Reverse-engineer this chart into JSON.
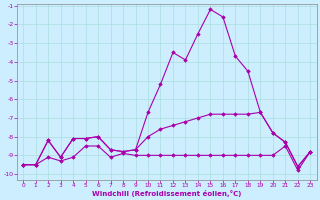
{
  "xlabel": "Windchill (Refroidissement éolien,°C)",
  "background_color": "#cceeff",
  "grid_color": "#aadddd",
  "line_color": "#aa00aa",
  "xlim": [
    -0.5,
    23.5
  ],
  "ylim": [
    -10,
    -1
  ],
  "yticks": [
    -10,
    -9,
    -8,
    -7,
    -6,
    -5,
    -4,
    -3,
    -2,
    -1
  ],
  "xticks": [
    0,
    1,
    2,
    3,
    4,
    5,
    6,
    7,
    8,
    9,
    10,
    11,
    12,
    13,
    14,
    15,
    16,
    17,
    18,
    19,
    20,
    21,
    22,
    23
  ],
  "line1_y": [
    -9.5,
    -9.5,
    -8.2,
    -9.1,
    -8.1,
    -8.1,
    -8.0,
    -8.7,
    -8.8,
    -8.7,
    -6.7,
    -5.2,
    -3.5,
    -3.9,
    -2.5,
    -1.2,
    -1.6,
    -3.7,
    -4.5,
    -6.7,
    -7.8,
    -8.3,
    -9.6,
    -8.8
  ],
  "line2_y": [
    -9.5,
    -9.5,
    -8.2,
    -9.1,
    -8.1,
    -8.1,
    -8.0,
    -8.7,
    -8.8,
    -8.7,
    -8.0,
    -7.6,
    -7.4,
    -7.2,
    -7.0,
    -6.8,
    -6.8,
    -6.8,
    -6.8,
    -6.7,
    -7.8,
    -8.3,
    -9.6,
    -8.8
  ],
  "line3_y": [
    -9.5,
    -9.5,
    -9.1,
    -9.3,
    -9.1,
    -8.5,
    -8.5,
    -9.1,
    -8.9,
    -9.0,
    -9.0,
    -9.0,
    -9.0,
    -9.0,
    -9.0,
    -9.0,
    -9.0,
    -9.0,
    -9.0,
    -9.0,
    -9.0,
    -8.5,
    -9.8,
    -8.8
  ]
}
